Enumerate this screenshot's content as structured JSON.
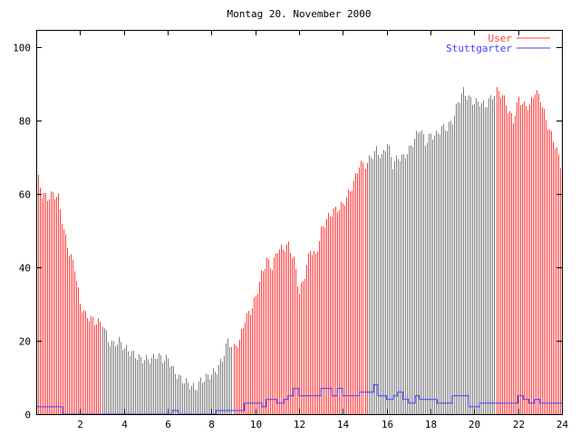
{
  "chart_data": {
    "type": "bar",
    "title": "Montag 20. November 2000",
    "xlabel": "",
    "ylabel": "",
    "xlim": [
      0,
      24
    ],
    "ylim": [
      0,
      105
    ],
    "xticks": [
      2,
      4,
      6,
      8,
      10,
      12,
      14,
      16,
      18,
      20,
      22,
      24
    ],
    "yticks": [
      0,
      20,
      40,
      60,
      80,
      100
    ],
    "grid": false,
    "legend_position": "top-right",
    "series": [
      {
        "name": "User",
        "style": "impulses",
        "color": "#ff4040",
        "x_step": 0.25,
        "values": [
          66,
          60,
          59,
          60,
          59,
          50,
          44,
          40,
          30,
          27,
          26,
          25,
          25,
          20,
          19,
          20,
          18,
          17,
          16,
          15,
          15,
          15,
          16,
          15,
          15,
          12,
          10,
          9,
          8,
          7,
          9,
          10,
          11,
          12,
          15,
          20,
          18,
          20,
          26,
          28,
          32,
          38,
          42,
          40,
          45,
          45,
          46,
          42,
          33,
          38,
          45,
          43,
          50,
          53,
          55,
          56,
          57,
          60,
          63,
          68,
          68,
          70,
          72,
          70,
          74,
          68,
          70,
          70,
          72,
          75,
          78,
          74,
          76,
          76,
          78,
          78,
          80,
          85,
          88,
          86,
          85,
          85,
          84,
          86,
          88,
          87,
          83,
          80,
          86,
          84,
          84,
          88,
          86,
          80,
          76,
          72,
          66
        ]
      },
      {
        "name": "Stuttgarter",
        "style": "steps",
        "color": "#4040ff",
        "points": [
          [
            0,
            2
          ],
          [
            1.2,
            0
          ],
          [
            6.2,
            1
          ],
          [
            6.5,
            0
          ],
          [
            8.2,
            1
          ],
          [
            9.5,
            3
          ],
          [
            10.3,
            2
          ],
          [
            10.5,
            4
          ],
          [
            11,
            3
          ],
          [
            11.3,
            4
          ],
          [
            11.5,
            5
          ],
          [
            11.75,
            7
          ],
          [
            12,
            5
          ],
          [
            12.75,
            5
          ],
          [
            13,
            7
          ],
          [
            13.5,
            5
          ],
          [
            13.75,
            7
          ],
          [
            14,
            5
          ],
          [
            14.75,
            6
          ],
          [
            15.4,
            8
          ],
          [
            15.6,
            5
          ],
          [
            16,
            4
          ],
          [
            16.3,
            5
          ],
          [
            16.5,
            6
          ],
          [
            16.75,
            4
          ],
          [
            17,
            3
          ],
          [
            17.3,
            5
          ],
          [
            17.5,
            4
          ],
          [
            18,
            4
          ],
          [
            18.3,
            3
          ],
          [
            19,
            5
          ],
          [
            19.75,
            2
          ],
          [
            20.25,
            3
          ],
          [
            22,
            5
          ],
          [
            22.25,
            4
          ],
          [
            22.5,
            3
          ],
          [
            22.75,
            4
          ],
          [
            23,
            3
          ],
          [
            24,
            3
          ]
        ]
      }
    ]
  }
}
